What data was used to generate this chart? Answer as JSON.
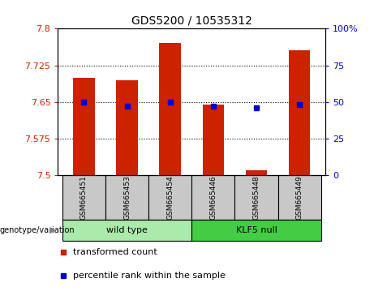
{
  "title": "GDS5200 / 10535312",
  "samples": [
    "GSM665451",
    "GSM665453",
    "GSM665454",
    "GSM665446",
    "GSM665448",
    "GSM665449"
  ],
  "red_values": [
    7.7,
    7.695,
    7.77,
    7.645,
    7.51,
    7.755
  ],
  "blue_values": [
    50,
    47,
    50,
    47,
    46,
    48
  ],
  "ylim_left": [
    7.5,
    7.8
  ],
  "ylim_right": [
    0,
    100
  ],
  "yticks_left": [
    7.5,
    7.575,
    7.65,
    7.725,
    7.8
  ],
  "yticks_right": [
    0,
    25,
    50,
    75,
    100
  ],
  "ytick_labels_left": [
    "7.5",
    "7.575",
    "7.65",
    "7.725",
    "7.8"
  ],
  "ytick_labels_right": [
    "0",
    "25",
    "50",
    "75",
    "100%"
  ],
  "bar_color": "#CC2200",
  "dot_color": "#0000CC",
  "bar_width": 0.5,
  "groups": [
    {
      "label": "wild type",
      "indices": [
        0,
        1,
        2
      ],
      "color": "#AAEAAA"
    },
    {
      "label": "KLF5 null",
      "indices": [
        3,
        4,
        5
      ],
      "color": "#44CC44"
    }
  ],
  "genotype_label": "genotype/variation",
  "legend_red": "transformed count",
  "legend_blue": "percentile rank within the sample",
  "label_bg": "#C8C8C8"
}
